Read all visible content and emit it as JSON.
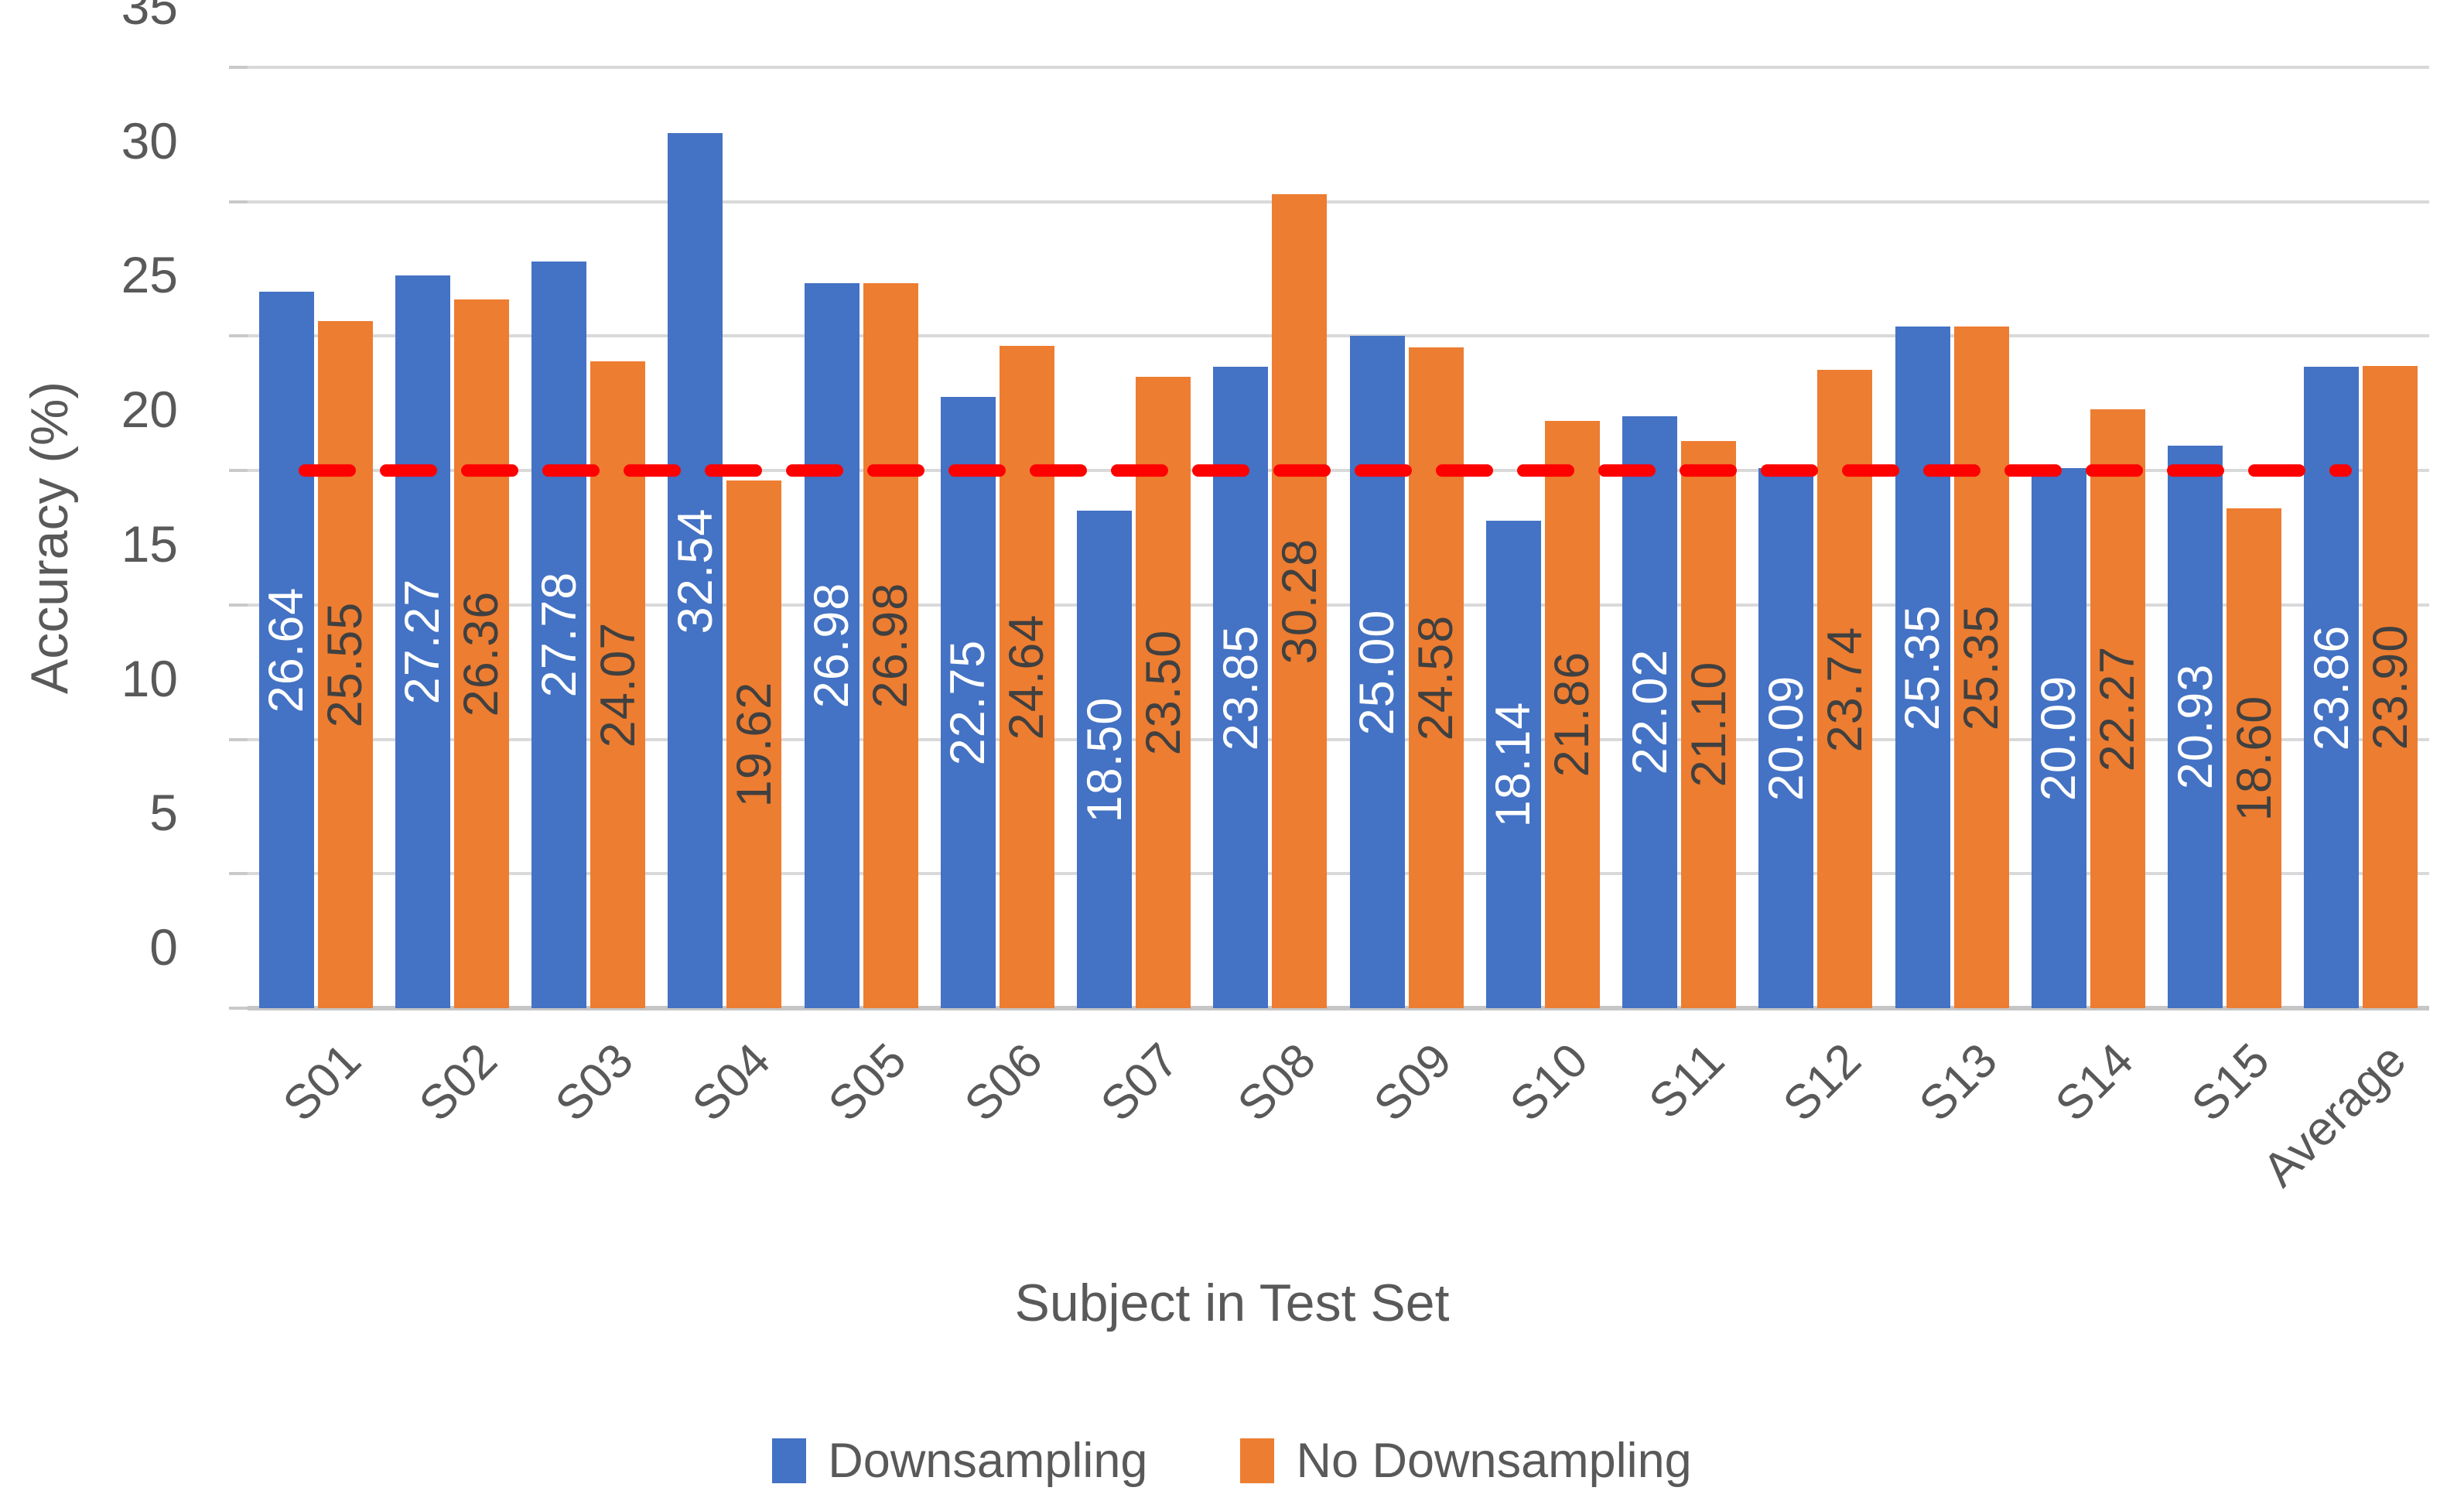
{
  "chart_data": {
    "type": "bar",
    "title": "",
    "categories": [
      "S01",
      "S02",
      "S03",
      "S04",
      "S05",
      "S06",
      "S07",
      "S08",
      "S09",
      "S10",
      "S11",
      "S12",
      "S13",
      "S14",
      "S15",
      "Average"
    ],
    "series": [
      {
        "name": "Downsampling",
        "color": "#4472C4",
        "label_color": "#FFFFFF",
        "values": [
          26.64,
          27.27,
          27.78,
          32.54,
          26.98,
          22.75,
          18.5,
          23.85,
          25.0,
          18.14,
          22.02,
          20.09,
          25.35,
          20.09,
          20.93,
          23.86
        ]
      },
      {
        "name": "No Downsampling",
        "color": "#ED7D31",
        "label_color": "#404040",
        "values": [
          25.55,
          26.36,
          24.07,
          19.62,
          26.98,
          24.64,
          23.5,
          30.28,
          24.58,
          21.86,
          21.1,
          23.74,
          25.35,
          22.27,
          18.6,
          23.9
        ]
      }
    ],
    "xlabel": "Subject in Test Set",
    "ylabel": "Accuracy (%)",
    "ylim": [
      0,
      35
    ],
    "yticks": [
      0,
      5,
      10,
      15,
      20,
      25,
      30,
      35
    ],
    "grid": true,
    "legend_position": "bottom",
    "value_label_decimals": 2,
    "reference_line": {
      "value": 20,
      "color": "#FF0000",
      "style": "dashed"
    }
  },
  "colors": {
    "axis_text": "#595959",
    "gridline": "#D9D9D9",
    "baseline": "#C6C6C6",
    "background": "#FFFFFF"
  }
}
